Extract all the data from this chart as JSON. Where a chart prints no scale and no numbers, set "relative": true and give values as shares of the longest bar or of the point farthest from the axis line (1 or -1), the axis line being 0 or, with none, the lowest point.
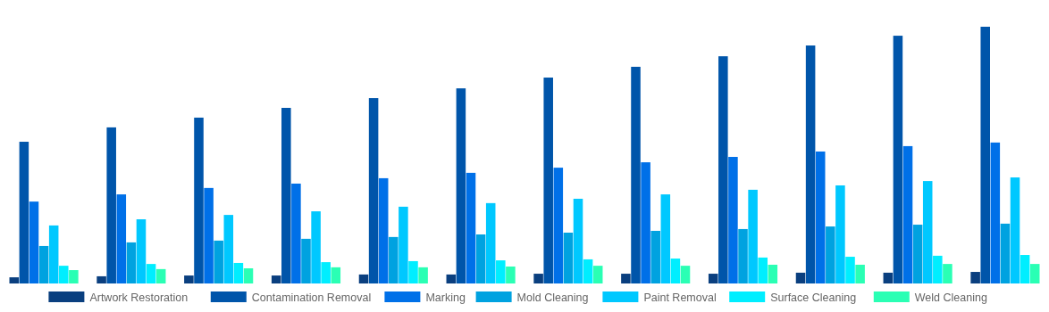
{
  "chart_data": {
    "type": "bar",
    "relative": true,
    "legend": "bottom",
    "categories": [
      null,
      null,
      null,
      null,
      null,
      null,
      null,
      null,
      null,
      null,
      null,
      null
    ],
    "series": [
      {
        "name": "Artwork Restoration",
        "color": "#0a3f7f",
        "values": [
          0.024,
          0.028,
          0.031,
          0.031,
          0.035,
          0.035,
          0.038,
          0.038,
          0.038,
          0.042,
          0.042,
          0.045
        ]
      },
      {
        "name": "Contamination Removal",
        "color": "#0055aa",
        "values": [
          0.552,
          0.608,
          0.646,
          0.684,
          0.722,
          0.76,
          0.802,
          0.844,
          0.885,
          0.927,
          0.965,
          1
        ]
      },
      {
        "name": "Marking",
        "color": "#0070e8",
        "values": [
          0.319,
          0.347,
          0.372,
          0.389,
          0.41,
          0.431,
          0.451,
          0.472,
          0.493,
          0.514,
          0.535,
          0.549
        ]
      },
      {
        "name": "Mold Cleaning",
        "color": "#00a2e0",
        "values": [
          0.146,
          0.16,
          0.167,
          0.174,
          0.181,
          0.191,
          0.198,
          0.205,
          0.212,
          0.222,
          0.229,
          0.233
        ]
      },
      {
        "name": "Paint Removal",
        "color": "#00c8ff",
        "values": [
          0.226,
          0.25,
          0.267,
          0.281,
          0.299,
          0.313,
          0.33,
          0.347,
          0.365,
          0.382,
          0.399,
          0.413
        ]
      },
      {
        "name": "Surface Cleaning",
        "color": "#00eeff",
        "values": [
          0.069,
          0.076,
          0.08,
          0.083,
          0.087,
          0.09,
          0.094,
          0.097,
          0.101,
          0.104,
          0.108,
          0.111
        ]
      },
      {
        "name": "Weld Cleaning",
        "color": "#2affb4",
        "values": [
          0.052,
          0.056,
          0.059,
          0.063,
          0.063,
          0.066,
          0.069,
          0.069,
          0.073,
          0.073,
          0.076,
          0.076
        ]
      }
    ]
  }
}
